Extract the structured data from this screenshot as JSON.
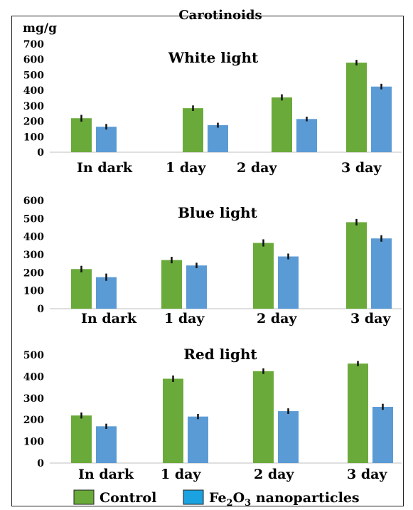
{
  "title": "Carotinoids",
  "unit_label": "mg/g",
  "colors": {
    "control": "#6aaa3a",
    "fe2o3": "#5b9bd5",
    "error_bar": "#111111"
  },
  "legend": [
    {
      "key": "control",
      "label": "Control",
      "color": "#6aaa3a"
    },
    {
      "key": "fe2o3",
      "label_main": "Fe",
      "label_sub1": "2",
      "label_mid": "O",
      "label_sub2": "3",
      "label_tail": " nanoparticles",
      "color": "#1aa3e0"
    }
  ],
  "chart_data": [
    {
      "type": "bar",
      "title": "White light",
      "ylabel": "mg/g",
      "ylim": [
        0,
        700
      ],
      "yticks": [
        0,
        100,
        200,
        300,
        400,
        500,
        600,
        700
      ],
      "categories": [
        "In dark",
        "1 day",
        "2 day",
        "3 day"
      ],
      "series": [
        {
          "name": "Control",
          "values": [
            220,
            285,
            355,
            580
          ],
          "errors": [
            22,
            18,
            20,
            18
          ]
        },
        {
          "name": "Fe2O3 nanoparticles",
          "values": [
            165,
            175,
            215,
            425
          ],
          "errors": [
            18,
            16,
            15,
            18
          ]
        }
      ]
    },
    {
      "type": "bar",
      "title": "Blue light",
      "ylim": [
        0,
        600
      ],
      "yticks": [
        0,
        100,
        200,
        300,
        400,
        500,
        600
      ],
      "categories": [
        "In dark",
        "1 day",
        "2 day",
        "3 day"
      ],
      "series": [
        {
          "name": "Control",
          "values": [
            220,
            270,
            365,
            480
          ],
          "errors": [
            18,
            18,
            20,
            18
          ]
        },
        {
          "name": "Fe2O3 nanoparticles",
          "values": [
            175,
            240,
            290,
            390
          ],
          "errors": [
            20,
            15,
            16,
            18
          ]
        }
      ]
    },
    {
      "type": "bar",
      "title": "Red light",
      "ylim": [
        0,
        500
      ],
      "yticks": [
        0,
        100,
        200,
        300,
        400,
        500
      ],
      "categories": [
        "In dark",
        "1 day",
        "2 day",
        "3 day"
      ],
      "series": [
        {
          "name": "Control",
          "values": [
            220,
            390,
            425,
            460
          ],
          "errors": [
            14,
            15,
            13,
            12
          ]
        },
        {
          "name": "Fe2O3 nanoparticles",
          "values": [
            170,
            215,
            240,
            260
          ],
          "errors": [
            12,
            12,
            13,
            14
          ]
        }
      ]
    }
  ]
}
